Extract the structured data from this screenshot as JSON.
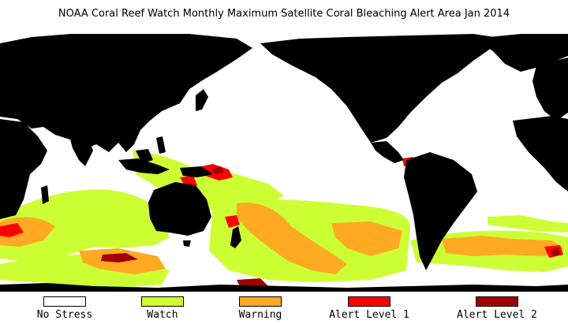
{
  "title": "NOAA Coral Reef Watch Monthly Maximum Satellite Coral Bleaching Alert Area   Jan 2014",
  "colors": {
    "land": "#000000",
    "no_stress": "#ffffff",
    "watch": "#ccff33",
    "warning": "#ffaa22",
    "alert1": "#ff0000",
    "alert2": "#a00000"
  },
  "legend": [
    {
      "label": "No Stress",
      "color": "#ffffff"
    },
    {
      "label": "Watch",
      "color": "#ccff33"
    },
    {
      "label": "Warning",
      "color": "#ffaa22"
    },
    {
      "label": "Alert Level 1",
      "color": "#ff0000"
    },
    {
      "label": "Alert Level 2",
      "color": "#a00000"
    }
  ]
}
